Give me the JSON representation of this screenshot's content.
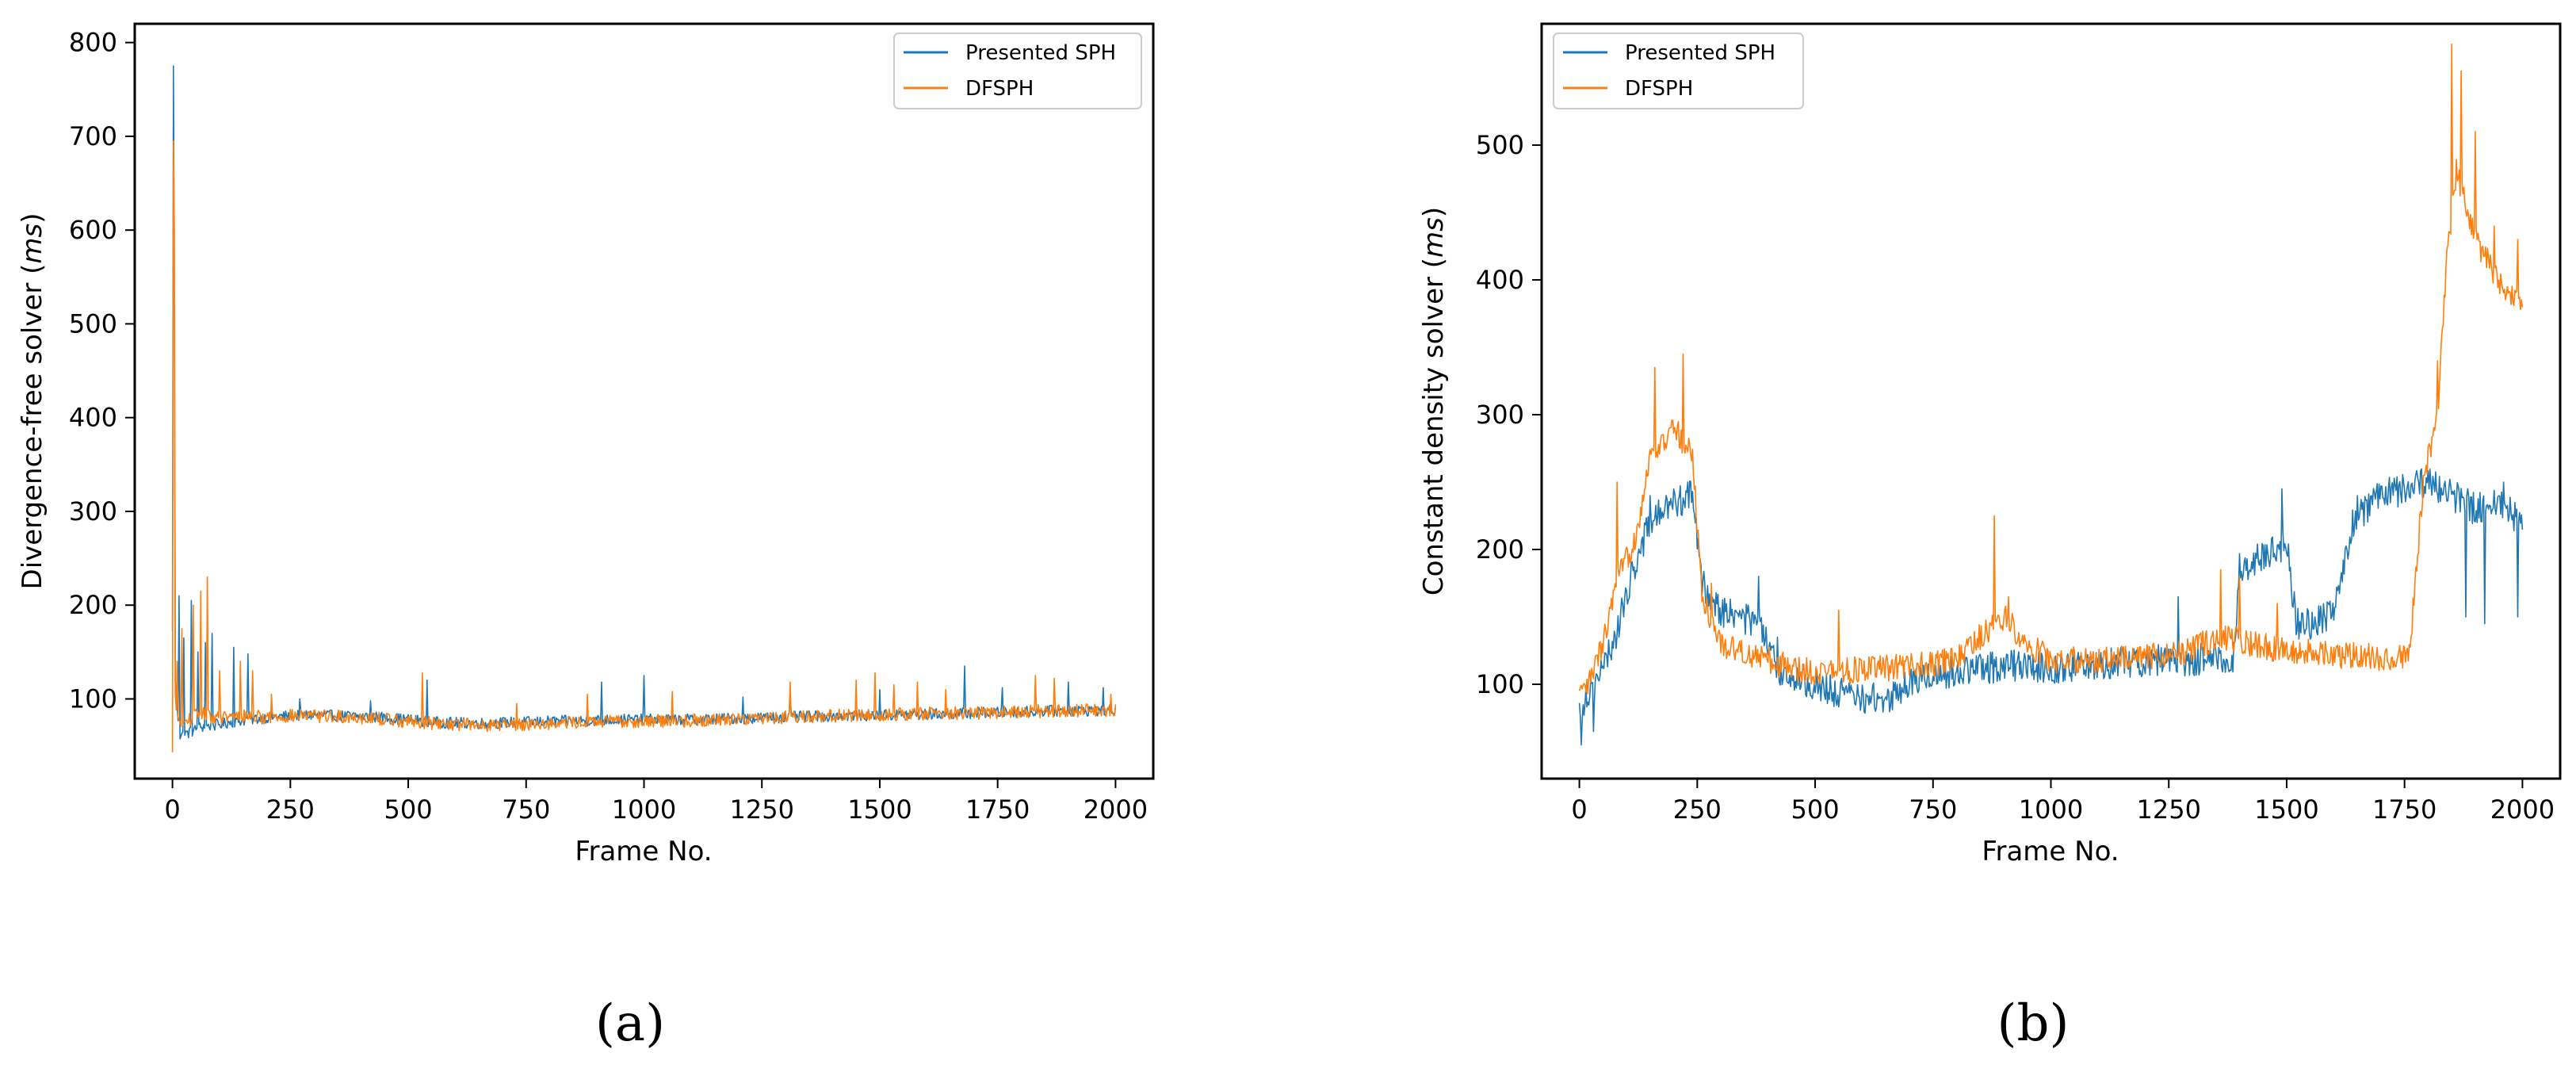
{
  "colors": {
    "presented": "#1f77b4",
    "dfsph": "#ff7f0e"
  },
  "chart_data": [
    {
      "type": "line",
      "caption": "(a)",
      "xlabel": "Frame No.",
      "ylabel_main": "Divergence-free solver (",
      "ylabel_unit": "ms",
      "ylabel_end": ")",
      "xlim": [
        -80,
        2080
      ],
      "ylim": [
        15,
        820
      ],
      "xticks": [
        0,
        250,
        500,
        750,
        1000,
        1250,
        1500,
        1750,
        2000
      ],
      "yticks": [
        100,
        200,
        300,
        400,
        500,
        600,
        700,
        800
      ],
      "legend_position": "upper right",
      "series": [
        {
          "name": "Presented SPH",
          "baseline": [
            [
              0,
              170
            ],
            [
              3,
              775
            ],
            [
              6,
              120
            ],
            [
              15,
              60
            ],
            [
              40,
              65
            ],
            [
              60,
              70
            ],
            [
              90,
              72
            ],
            [
              120,
              75
            ],
            [
              160,
              78
            ],
            [
              200,
              80
            ],
            [
              250,
              82
            ],
            [
              300,
              83
            ],
            [
              350,
              82
            ],
            [
              420,
              81
            ],
            [
              500,
              78
            ],
            [
              560,
              75
            ],
            [
              650,
              74
            ],
            [
              800,
              76
            ],
            [
              950,
              78
            ],
            [
              1100,
              78
            ],
            [
              1250,
              80
            ],
            [
              1400,
              82
            ],
            [
              1550,
              83
            ],
            [
              1700,
              85
            ],
            [
              1850,
              87
            ],
            [
              2000,
              88
            ]
          ],
          "noise": 6,
          "spikes": [
            [
              3,
              775
            ],
            [
              5,
              520
            ],
            [
              14,
              210
            ],
            [
              25,
              165
            ],
            [
              40,
              205
            ],
            [
              55,
              150
            ],
            [
              70,
              160
            ],
            [
              85,
              170
            ],
            [
              130,
              155
            ],
            [
              160,
              148
            ],
            [
              270,
              100
            ],
            [
              420,
              98
            ],
            [
              540,
              120
            ],
            [
              910,
              118
            ],
            [
              1000,
              125
            ],
            [
              1210,
              102
            ],
            [
              1310,
              106
            ],
            [
              1500,
              110
            ],
            [
              1680,
              135
            ],
            [
              1760,
              112
            ],
            [
              1900,
              118
            ],
            [
              1975,
              112
            ]
          ]
        },
        {
          "name": "DFSPH",
          "baseline": [
            [
              0,
              40
            ],
            [
              3,
              690
            ],
            [
              6,
              100
            ],
            [
              15,
              70
            ],
            [
              40,
              80
            ],
            [
              60,
              85
            ],
            [
              90,
              80
            ],
            [
              120,
              80
            ],
            [
              160,
              82
            ],
            [
              200,
              80
            ],
            [
              250,
              82
            ],
            [
              300,
              82
            ],
            [
              350,
              81
            ],
            [
              420,
              80
            ],
            [
              500,
              76
            ],
            [
              560,
              74
            ],
            [
              650,
              72
            ],
            [
              800,
              74
            ],
            [
              950,
              76
            ],
            [
              1100,
              77
            ],
            [
              1250,
              80
            ],
            [
              1400,
              82
            ],
            [
              1550,
              84
            ],
            [
              1700,
              85
            ],
            [
              1850,
              87
            ],
            [
              2000,
              88
            ]
          ],
          "noise": 7,
          "spikes": [
            [
              2,
              695
            ],
            [
              4,
              600
            ],
            [
              10,
              140
            ],
            [
              20,
              175
            ],
            [
              45,
              200
            ],
            [
              60,
              215
            ],
            [
              75,
              230
            ],
            [
              100,
              130
            ],
            [
              145,
              140
            ],
            [
              170,
              130
            ],
            [
              210,
              105
            ],
            [
              530,
              128
            ],
            [
              730,
              95
            ],
            [
              880,
              105
            ],
            [
              1060,
              108
            ],
            [
              1310,
              118
            ],
            [
              1450,
              120
            ],
            [
              1490,
              128
            ],
            [
              1530,
              115
            ],
            [
              1580,
              118
            ],
            [
              1640,
              110
            ],
            [
              1830,
              125
            ],
            [
              1870,
              122
            ],
            [
              1990,
              105
            ]
          ]
        }
      ]
    },
    {
      "type": "line",
      "caption": "(b)",
      "xlabel": "Frame No.",
      "ylabel_main": "Constant density solver (",
      "ylabel_unit": "ms",
      "ylabel_end": ")",
      "xlim": [
        -80,
        2080
      ],
      "ylim": [
        30,
        590
      ],
      "xticks": [
        0,
        250,
        500,
        750,
        1000,
        1250,
        1500,
        1750,
        2000
      ],
      "yticks": [
        100,
        200,
        300,
        400,
        500
      ],
      "legend_position": "upper left",
      "series": [
        {
          "name": "Presented SPH",
          "baseline": [
            [
              0,
              80
            ],
            [
              20,
              95
            ],
            [
              50,
              110
            ],
            [
              80,
              140
            ],
            [
              120,
              190
            ],
            [
              150,
              220
            ],
            [
              200,
              235
            ],
            [
              240,
              240
            ],
            [
              260,
              175
            ],
            [
              300,
              155
            ],
            [
              380,
              145
            ],
            [
              420,
              110
            ],
            [
              500,
              100
            ],
            [
              560,
              92
            ],
            [
              650,
              88
            ],
            [
              720,
              105
            ],
            [
              800,
              110
            ],
            [
              870,
              112
            ],
            [
              900,
              115
            ],
            [
              1000,
              112
            ],
            [
              1100,
              115
            ],
            [
              1200,
              118
            ],
            [
              1300,
              118
            ],
            [
              1390,
              120
            ],
            [
              1400,
              185
            ],
            [
              1450,
              195
            ],
            [
              1500,
              205
            ],
            [
              1520,
              145
            ],
            [
              1560,
              145
            ],
            [
              1600,
              155
            ],
            [
              1640,
              220
            ],
            [
              1700,
              240
            ],
            [
              1760,
              245
            ],
            [
              1800,
              250
            ],
            [
              1850,
              240
            ],
            [
              1900,
              230
            ],
            [
              1950,
              235
            ],
            [
              2000,
              220
            ]
          ],
          "noise": 12,
          "spikes": [
            [
              5,
              55
            ],
            [
              30,
              65
            ],
            [
              110,
              190
            ],
            [
              150,
              240
            ],
            [
              230,
              250
            ],
            [
              380,
              180
            ],
            [
              420,
              135
            ],
            [
              1270,
              165
            ],
            [
              1490,
              245
            ],
            [
              1560,
              150
            ],
            [
              1650,
              240
            ],
            [
              1880,
              150
            ],
            [
              1920,
              145
            ],
            [
              1960,
              250
            ],
            [
              1990,
              150
            ]
          ]
        },
        {
          "name": "DFSPH",
          "baseline": [
            [
              0,
              90
            ],
            [
              20,
              100
            ],
            [
              50,
              130
            ],
            [
              80,
              175
            ],
            [
              120,
              210
            ],
            [
              150,
              270
            ],
            [
              180,
              280
            ],
            [
              200,
              290
            ],
            [
              240,
              270
            ],
            [
              260,
              165
            ],
            [
              300,
              130
            ],
            [
              400,
              118
            ],
            [
              450,
              112
            ],
            [
              500,
              110
            ],
            [
              560,
              110
            ],
            [
              650,
              112
            ],
            [
              750,
              115
            ],
            [
              800,
              118
            ],
            [
              850,
              135
            ],
            [
              900,
              150
            ],
            [
              950,
              130
            ],
            [
              1000,
              118
            ],
            [
              1100,
              118
            ],
            [
              1200,
              120
            ],
            [
              1300,
              125
            ],
            [
              1350,
              135
            ],
            [
              1400,
              132
            ],
            [
              1500,
              125
            ],
            [
              1600,
              122
            ],
            [
              1700,
              120
            ],
            [
              1760,
              120
            ],
            [
              1790,
              250
            ],
            [
              1820,
              300
            ],
            [
              1840,
              420
            ],
            [
              1860,
              480
            ],
            [
              1900,
              430
            ],
            [
              1950,
              400
            ],
            [
              2000,
              380
            ]
          ],
          "noise": 10,
          "spikes": [
            [
              80,
              250
            ],
            [
              160,
              335
            ],
            [
              220,
              345
            ],
            [
              280,
              175
            ],
            [
              550,
              155
            ],
            [
              880,
              225
            ],
            [
              910,
              165
            ],
            [
              1360,
              185
            ],
            [
              1400,
              180
            ],
            [
              1480,
              160
            ],
            [
              1820,
              340
            ],
            [
              1850,
              575
            ],
            [
              1870,
              555
            ],
            [
              1900,
              510
            ],
            [
              1940,
              440
            ],
            [
              1990,
              430
            ]
          ]
        }
      ]
    }
  ]
}
